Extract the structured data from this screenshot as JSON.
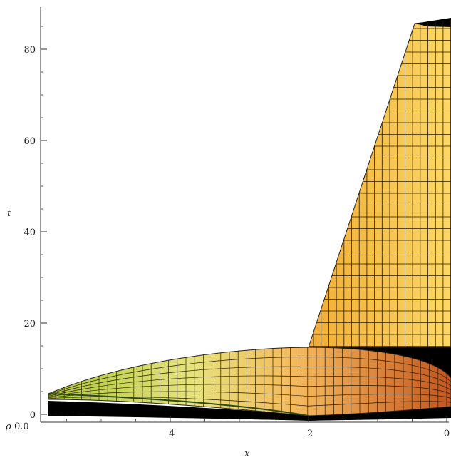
{
  "chart_data": {
    "type": "surface3d",
    "x_axis": {
      "label": "x",
      "ticks": [
        {
          "value": -4,
          "label": "-4"
        },
        {
          "value": -2,
          "label": "-2"
        },
        {
          "value": 0,
          "label": "0"
        }
      ],
      "range": [
        -5.8,
        0
      ]
    },
    "t_axis": {
      "label": "t",
      "ticks": [
        {
          "value": 0,
          "label": "0"
        },
        {
          "value": 20,
          "label": "20"
        },
        {
          "value": 40,
          "label": "40"
        },
        {
          "value": 60,
          "label": "60"
        },
        {
          "value": 80,
          "label": "80"
        }
      ],
      "range": [
        0,
        88
      ]
    },
    "rho_axis": {
      "label": "ρ",
      "tick_label": "0.0"
    },
    "surfaces": [
      {
        "name_hint": "upper-wall",
        "colors": [
          "#f2b23a",
          "#fbd86a"
        ]
      },
      {
        "name_hint": "lower-lens",
        "colors": [
          "#b9d23f",
          "#e7e07a",
          "#f1a24e",
          "#c95a22"
        ]
      }
    ],
    "grid": false,
    "legend": "none"
  }
}
